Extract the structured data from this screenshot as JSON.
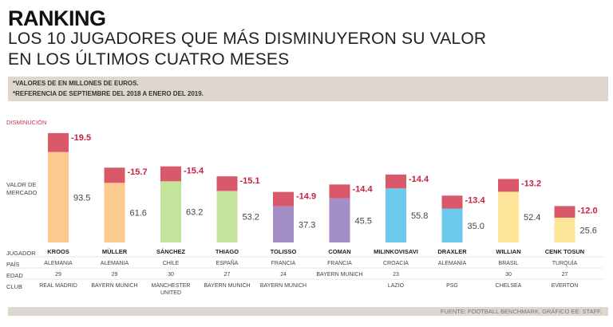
{
  "header": {
    "kicker": "RANKING",
    "headline_line1": "LOS 10 JUGADORES QUE MÁS DISMINUYERON SU VALOR",
    "headline_line2": "EN LOS ÚLTIMOS CUATRO MESES"
  },
  "notes": {
    "line1": "*VALORES DE EN MILLONES DE EUROS.",
    "line2": "*REFERENCIA DE SEPTIEMBRE DEL 2018 A ENERO DEL 2019."
  },
  "labels": {
    "disminucion": "DISMINUCIÓN",
    "valor_line1": "VALOR DE",
    "valor_line2": "MERCADO",
    "jugador": "JUGADOR",
    "pais": "PAÍS",
    "edad": "EDAD",
    "club": "CLUB"
  },
  "colors": {
    "decrease": "#d9596a",
    "decrease_text": "#c8213f"
  },
  "chart_data": {
    "type": "bar",
    "stacked": true,
    "title": "LOS 10 JUGADORES QUE MÁS DISMINUYERON SU VALOR EN LOS ÚLTIMOS CUATRO MESES",
    "unit": "millones de euros",
    "ylim": [
      0,
      113
    ],
    "categories": [
      "KROOS",
      "MÜLLER",
      "SÁNCHEZ",
      "THIAGO",
      "TOLISSO",
      "COMAN",
      "MILINKOVISAVI",
      "DRAXLER",
      "WILLIAN",
      "CENK TOSUN"
    ],
    "series": [
      {
        "name": "VALOR DE MERCADO",
        "values": [
          93.5,
          61.6,
          63.2,
          53.2,
          37.3,
          45.5,
          55.8,
          35.0,
          52.4,
          25.6
        ],
        "value_labels": [
          "93.5",
          "61.6",
          "63.2",
          "53.2",
          "37.3",
          "45.5",
          "55.8",
          "35.0",
          "52.4",
          "25.6"
        ]
      },
      {
        "name": "DISMINUCIÓN",
        "values": [
          19.5,
          15.7,
          15.4,
          15.1,
          14.9,
          14.4,
          14.4,
          13.4,
          13.2,
          12.0
        ],
        "value_labels": [
          "-19.5",
          "-15.7",
          "-15.4",
          "-15.1",
          "-14.9",
          "-14.4",
          "-14.4",
          "-13.4",
          "-13.2",
          "-12.0"
        ]
      }
    ],
    "bar_colors": [
      "#fcc98e",
      "#fcc98e",
      "#c4e49b",
      "#c4e49b",
      "#a38ec8",
      "#a38ec8",
      "#6dcaed",
      "#6dcaed",
      "#fde59a",
      "#fde59a"
    ],
    "players": [
      {
        "name": "KROOS",
        "country": "ALEMANIA",
        "age": "29",
        "club": "REAL MADRID"
      },
      {
        "name": "MÜLLER",
        "country": "ALEMANIA",
        "age": "29",
        "club": "BAYERN MUNICH"
      },
      {
        "name": "SÁNCHEZ",
        "country": "CHILE",
        "age": "30",
        "club": "MANCHESTER UNITED"
      },
      {
        "name": "THIAGO",
        "country": "ESPAÑA",
        "age": "27",
        "club": "BAYERN MUNICH"
      },
      {
        "name": "TOLISSO",
        "country": "FRANCIA",
        "age": "24",
        "club": "BAYERN MUNICH"
      },
      {
        "name": "COMAN",
        "country": "FRANCIA",
        "age": "",
        "club": "BAYERN MUNICH"
      },
      {
        "name": "MILINKOVISAVI",
        "country": "CROACIA",
        "age": "23",
        "club": "LAZIO"
      },
      {
        "name": "DRAXLER",
        "country": "ALEMANIA",
        "age": "",
        "club": "PSG"
      },
      {
        "name": "WILLIAN",
        "country": "BRASIL",
        "age": "30",
        "club": "CHELSEA"
      },
      {
        "name": "CENK TOSUN",
        "country": "TURQUÍA",
        "age": "27",
        "club": "EVERTON"
      }
    ]
  },
  "footer": {
    "source": "FUENTE: FOOTBALL BENCHMARK. GRÁFICO EE: STAFF."
  }
}
